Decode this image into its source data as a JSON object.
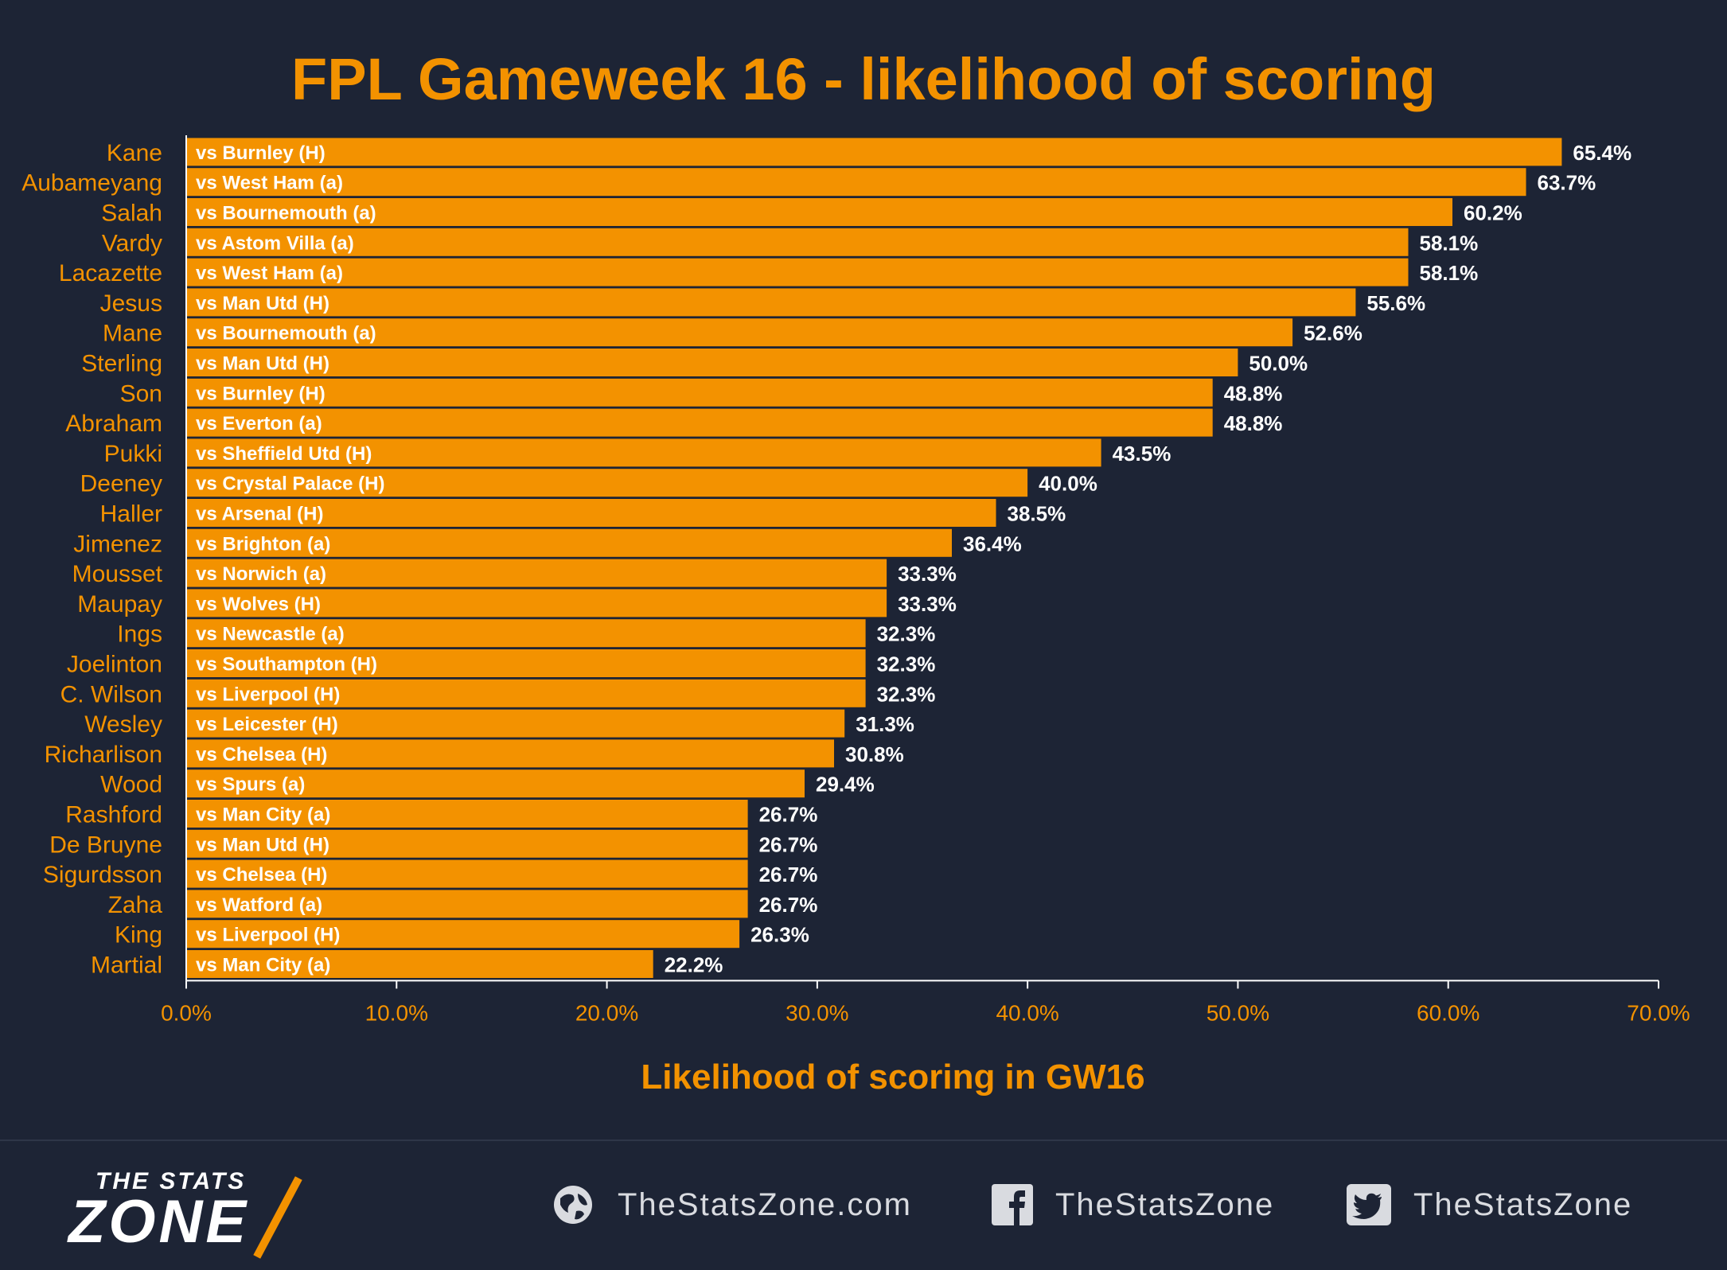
{
  "chart_data": {
    "type": "bar",
    "orientation": "horizontal",
    "title": "FPL Gameweek 16 - likelihood of scoring",
    "xlabel": "Likelihood of scoring in GW16",
    "xlim": [
      0,
      70
    ],
    "xticks": [
      "0.0%",
      "10.0%",
      "20.0%",
      "30.0%",
      "40.0%",
      "50.0%",
      "60.0%",
      "70.0%"
    ],
    "categories": [
      "Kane",
      "Aubameyang",
      "Salah",
      "Vardy",
      "Lacazette",
      "Jesus",
      "Mane",
      "Sterling",
      "Son",
      "Abraham",
      "Pukki",
      "Deeney",
      "Haller",
      "Jimenez",
      "Mousset",
      "Maupay",
      "Ings",
      "Joelinton",
      "C. Wilson",
      "Wesley",
      "Richarlison",
      "Wood",
      "Rashford",
      "De Bruyne",
      "Sigurdsson",
      "Zaha",
      "King",
      "Martial"
    ],
    "fixtures": [
      "vs Burnley (H)",
      "vs West Ham (a)",
      "vs Bournemouth (a)",
      "vs Astom Villa (a)",
      "vs West Ham (a)",
      "vs Man Utd (H)",
      "vs Bournemouth (a)",
      "vs Man Utd (H)",
      "vs Burnley (H)",
      "vs Everton (a)",
      "vs Sheffield Utd (H)",
      "vs Crystal Palace (H)",
      "vs Arsenal (H)",
      "vs Brighton (a)",
      "vs Norwich (a)",
      "vs Wolves (H)",
      "vs Newcastle (a)",
      "vs Southampton (H)",
      "vs Liverpool (H)",
      "vs Leicester (H)",
      "vs Chelsea (H)",
      "vs Spurs (a)",
      "vs Man City (a)",
      "vs Man Utd (H)",
      "vs Chelsea (H)",
      "vs Watford (a)",
      "vs Liverpool (H)",
      "vs Man City (a)"
    ],
    "values": [
      65.4,
      63.7,
      60.2,
      58.1,
      58.1,
      55.6,
      52.6,
      50.0,
      48.8,
      48.8,
      43.5,
      40.0,
      38.5,
      36.4,
      33.3,
      33.3,
      32.3,
      32.3,
      32.3,
      31.3,
      30.8,
      29.4,
      26.7,
      26.7,
      26.7,
      26.7,
      26.3,
      22.2
    ],
    "value_labels": [
      "65.4%",
      "63.7%",
      "60.2%",
      "58.1%",
      "58.1%",
      "55.6%",
      "52.6%",
      "50.0%",
      "48.8%",
      "48.8%",
      "43.5%",
      "40.0%",
      "38.5%",
      "36.4%",
      "33.3%",
      "33.3%",
      "32.3%",
      "32.3%",
      "32.3%",
      "31.3%",
      "30.8%",
      "29.4%",
      "26.7%",
      "26.7%",
      "26.7%",
      "26.7%",
      "26.3%",
      "22.2%"
    ],
    "grid": false,
    "legend": "none"
  },
  "colors": {
    "background": "#1d2435",
    "bar": "#f39200",
    "accent": "#f39200",
    "value_text": "#ffffff"
  },
  "footer": {
    "logo_top": "THE STATS",
    "logo_main": "ZONE",
    "website": "TheStatsZone.com",
    "facebook": "TheStatsZone",
    "twitter": "TheStatsZone",
    "icons": [
      "globe-icon",
      "facebook-icon",
      "twitter-icon"
    ]
  }
}
